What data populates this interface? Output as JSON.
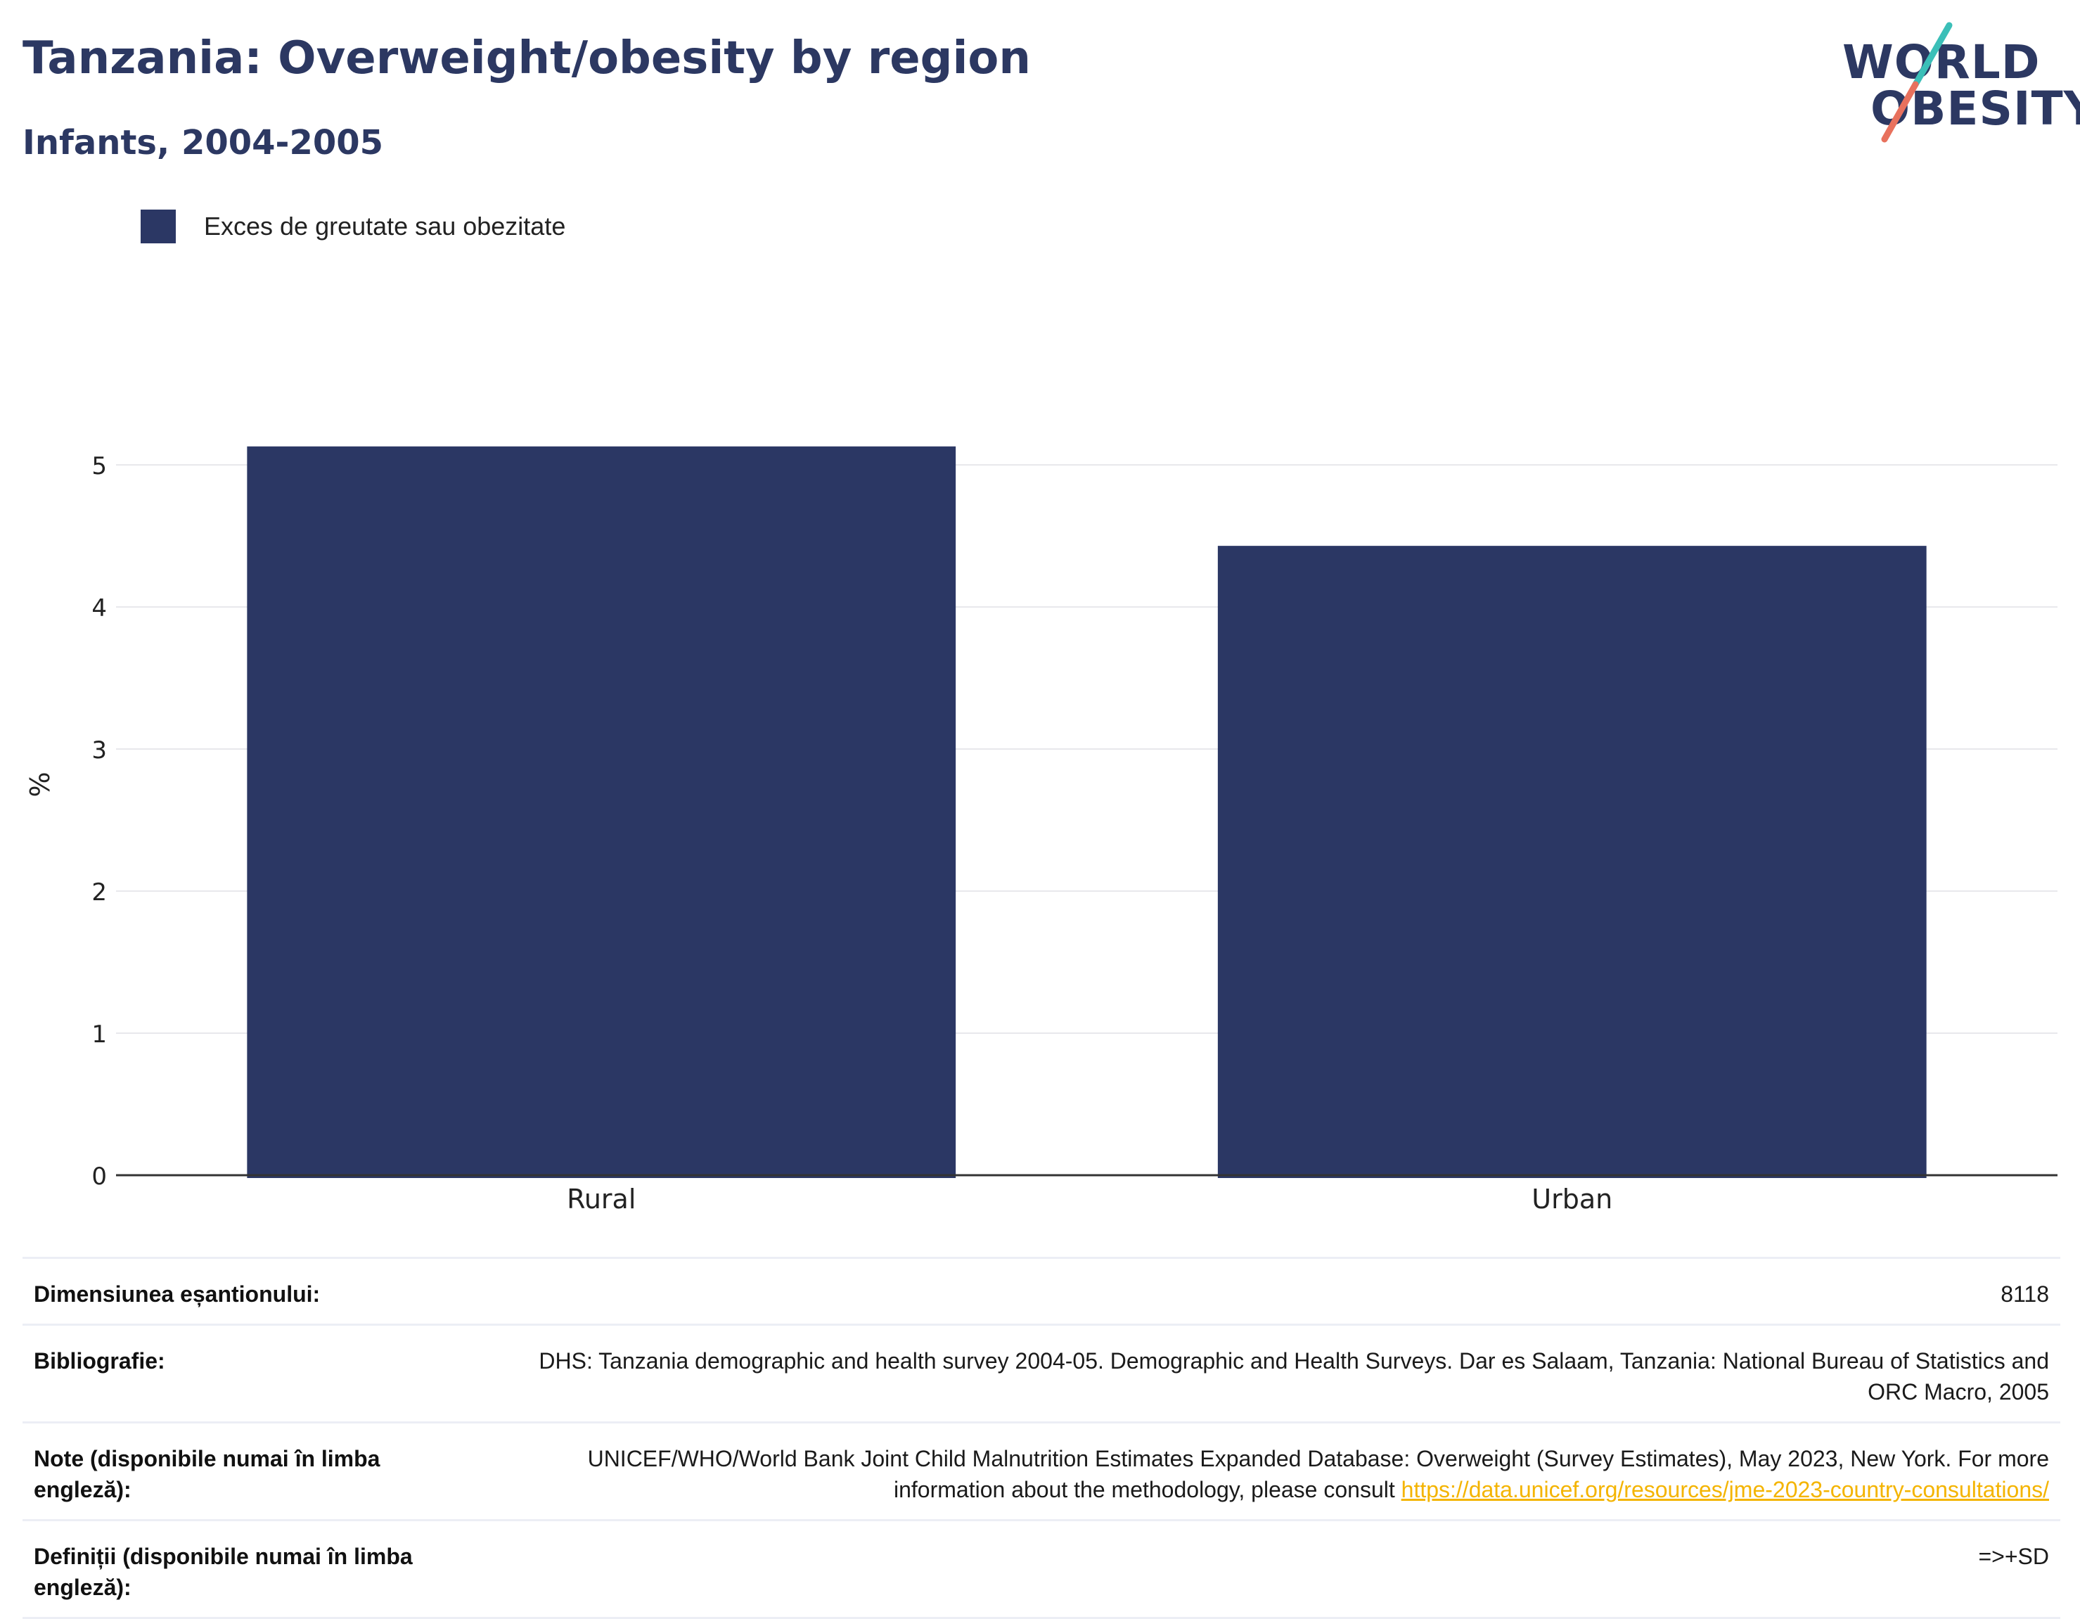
{
  "header": {
    "title": "Tanzania: Overweight/obesity by region",
    "subtitle": "Infants, 2004-2005"
  },
  "logo": {
    "line1": "WORLD",
    "line2": "OBESITY",
    "accent_colors": [
      "#3bbfb8",
      "#e8715d"
    ]
  },
  "legend": {
    "label": "Exces de greutate sau obezitate",
    "color": "#2b3764"
  },
  "chart_data": {
    "type": "bar",
    "categories": [
      "Rural",
      "Urban"
    ],
    "series": [
      {
        "name": "Exces de greutate sau obezitate",
        "values": [
          5.13,
          4.43
        ]
      }
    ],
    "ylabel": "%",
    "xlabel": "",
    "ylim": [
      0,
      5.5
    ],
    "yticks": [
      0,
      1,
      2,
      3,
      4,
      5
    ],
    "grid": true,
    "bar_color": "#2b3764"
  },
  "info": [
    {
      "label": "Dimensiunea eșantionului:",
      "value": "8118"
    },
    {
      "label": "Bibliografie:",
      "value": "DHS: Tanzania demographic and health survey 2004-05. Demographic and Health Surveys. Dar es Salaam, Tanzania: National Bureau of Statistics and ORC Macro, 2005"
    },
    {
      "label": "Note (disponibile numai în limba engleză):",
      "value": "UNICEF/WHO/World Bank Joint Child Malnutrition Estimates Expanded Database: Overweight (Survey Estimates), May 2023, New York. For more information about the methodology, please consult ",
      "link": "https://data.unicef.org/resources/jme-2023-country-consultations/"
    },
    {
      "label": "Definiții (disponibile numai în limba engleză):",
      "value": "=>+SD"
    }
  ]
}
